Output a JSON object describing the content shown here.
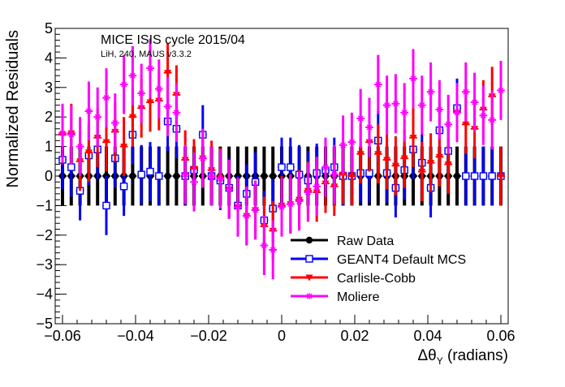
{
  "chart_data": {
    "type": "scatter",
    "title": "MICE ISIS cycle 2015/04",
    "subtitle": "LiH, 240, MAUS v3.3.2",
    "xlabel": "Δθ",
    "xlabel_sub": "Y",
    "xlabel_unit": " (radians)",
    "ylabel": "Normalized Residuals",
    "xlim": [
      -0.062,
      0.062
    ],
    "ylim": [
      -5,
      5
    ],
    "x_ticks": [
      -0.06,
      -0.04,
      -0.02,
      0,
      0.02,
      0.04,
      0.06
    ],
    "x_tick_labels": [
      "−0.06",
      "−0.04",
      "−0.02",
      "0",
      "0.02",
      "0.04",
      "0.06"
    ],
    "y_ticks": [
      -5,
      -4,
      -3,
      -2,
      -1,
      0,
      1,
      2,
      3,
      4,
      5
    ],
    "y_tick_labels": [
      "−5",
      "−4",
      "−3",
      "−2",
      "−1",
      "0",
      "1",
      "2",
      "3",
      "4",
      "5"
    ],
    "x_step": 0.0024,
    "x": [
      -0.06,
      -0.0576,
      -0.0552,
      -0.0528,
      -0.0504,
      -0.048,
      -0.0456,
      -0.0432,
      -0.0408,
      -0.0384,
      -0.036,
      -0.0336,
      -0.0312,
      -0.0288,
      -0.0264,
      -0.024,
      -0.0216,
      -0.0192,
      -0.0168,
      -0.0144,
      -0.012,
      -0.0096,
      -0.0072,
      -0.0048,
      -0.0024,
      0,
      0.0024,
      0.0048,
      0.0072,
      0.0096,
      0.012,
      0.0144,
      0.0168,
      0.0192,
      0.0216,
      0.024,
      0.0264,
      0.0288,
      0.0312,
      0.0336,
      0.036,
      0.0384,
      0.0408,
      0.0432,
      0.0456,
      0.048,
      0.0504,
      0.0528,
      0.0552,
      0.0576,
      0.06
    ],
    "legend_position": "bottom-center",
    "grid": false,
    "series": [
      {
        "name": "Raw Data",
        "color": "#000000",
        "marker": "circle",
        "values": [
          0,
          0,
          0,
          0,
          0,
          0,
          0,
          0,
          0,
          0,
          0,
          0,
          0,
          0,
          0,
          0,
          0,
          0,
          0,
          0,
          0,
          0,
          0,
          0,
          0,
          0,
          0,
          0,
          0,
          0,
          0,
          0,
          0,
          0,
          0,
          0,
          0,
          0,
          0,
          0,
          0,
          0,
          0,
          0,
          0,
          0,
          0,
          0,
          0,
          0,
          0
        ],
        "errors": [
          1,
          1,
          1,
          1,
          1,
          1,
          1,
          1,
          1,
          1,
          1,
          1,
          1,
          1,
          1,
          1,
          1,
          1,
          1,
          1,
          1,
          1,
          1,
          1,
          1,
          1,
          1,
          1,
          1,
          1,
          1,
          1,
          1,
          1,
          1,
          1,
          1,
          1,
          1,
          1,
          1,
          1,
          1,
          1,
          1,
          1,
          1,
          1,
          1,
          1,
          1
        ]
      },
      {
        "name": "GEANT4 Default MCS",
        "color": "#0000ff",
        "marker": "open-square",
        "values": [
          0.55,
          0.3,
          -0.5,
          0.7,
          0.9,
          -1.0,
          0.6,
          -0.35,
          1.4,
          0.05,
          0.15,
          0.0,
          1.85,
          1.6,
          0.0,
          0.2,
          1.4,
          0.0,
          -0.15,
          -0.4,
          -1.0,
          -0.6,
          -0.2,
          -1.5,
          -1.1,
          0.3,
          0.3,
          0.05,
          -0.15,
          0.1,
          0.2,
          0.3,
          0.0,
          0.0,
          0.1,
          0.1,
          1.2,
          0.1,
          -0.4,
          0.2,
          0.9,
          0.45,
          -0.4,
          1.55,
          0.85,
          2.3,
          0,
          0,
          0,
          0,
          0
        ],
        "errors": [
          1,
          1,
          1,
          1,
          1,
          1,
          1,
          1,
          1,
          1,
          1,
          1,
          1,
          1,
          1,
          1,
          1,
          1,
          1,
          1,
          1,
          1,
          1,
          1,
          1,
          1,
          1,
          1,
          1,
          1,
          1,
          1,
          1,
          1,
          1,
          1,
          1,
          1,
          1,
          1,
          1,
          1,
          1,
          1,
          1,
          1,
          1,
          1,
          1,
          1,
          1
        ]
      },
      {
        "name": "Carlisle-Cobb",
        "color": "#ff0000",
        "marker": "triangle-down",
        "values": [
          1.4,
          1.45,
          0.5,
          0.8,
          1.3,
          1.15,
          1.5,
          1.0,
          2.0,
          2.3,
          2.5,
          2.55,
          3.5,
          2.75,
          0.55,
          0.25,
          0.6,
          0.2,
          -0.05,
          -0.45,
          -1.05,
          -1.35,
          -1.15,
          -1.7,
          -1.85,
          -1.0,
          -0.95,
          -0.8,
          -0.5,
          -0.55,
          -0.25,
          -0.35,
          0.05,
          0.0,
          0.75,
          1.15,
          0.75,
          0.55,
          0.35,
          0.6,
          1.3,
          0.15,
          0.45,
          0.65,
          0.4,
          2.15,
          1.75,
          1.6,
          2.25,
          2.7,
          0
        ],
        "errors": [
          1,
          1,
          1,
          1,
          1,
          1,
          1,
          1,
          1,
          1,
          1,
          1,
          1,
          1,
          1,
          1,
          1,
          1,
          1,
          1,
          1,
          1,
          1,
          1,
          1,
          1,
          1,
          1,
          1,
          1,
          1,
          1,
          1,
          1,
          1,
          1,
          1,
          1,
          1,
          1,
          1,
          1,
          1,
          1,
          1,
          1,
          1,
          1,
          1,
          1,
          1
        ]
      },
      {
        "name": "Moliere",
        "color": "#ff00ff",
        "marker": "star",
        "values": [
          1.45,
          1.4,
          1.0,
          2.2,
          2.0,
          2.65,
          1.8,
          3.1,
          3.4,
          2.8,
          3.65,
          2.95,
          2.35,
          2.15,
          0.05,
          -0.2,
          0.6,
          0.0,
          -0.1,
          -0.45,
          -1.05,
          -1.35,
          -1.15,
          -2.35,
          -2.5,
          -1.05,
          -0.95,
          -0.85,
          -0.55,
          -0.35,
          0.3,
          0.05,
          1.05,
          1.15,
          1.95,
          1.65,
          3.1,
          2.4,
          2.45,
          2.15,
          3.3,
          2.4,
          2.85,
          2.25,
          1.75,
          2.15,
          2.85,
          2.5,
          2.05,
          1.9,
          2.9
        ],
        "errors": [
          1,
          1,
          1,
          1,
          1,
          1,
          1,
          1,
          1,
          1,
          1,
          1,
          1,
          1,
          1,
          1,
          1,
          1,
          1,
          1,
          1,
          1,
          1,
          1,
          1,
          1,
          1,
          1,
          1,
          1,
          1,
          1,
          1,
          1,
          1,
          1,
          1,
          1,
          1,
          1,
          1,
          1,
          1,
          1,
          1,
          1,
          1,
          1,
          1,
          1,
          1
        ]
      }
    ]
  }
}
